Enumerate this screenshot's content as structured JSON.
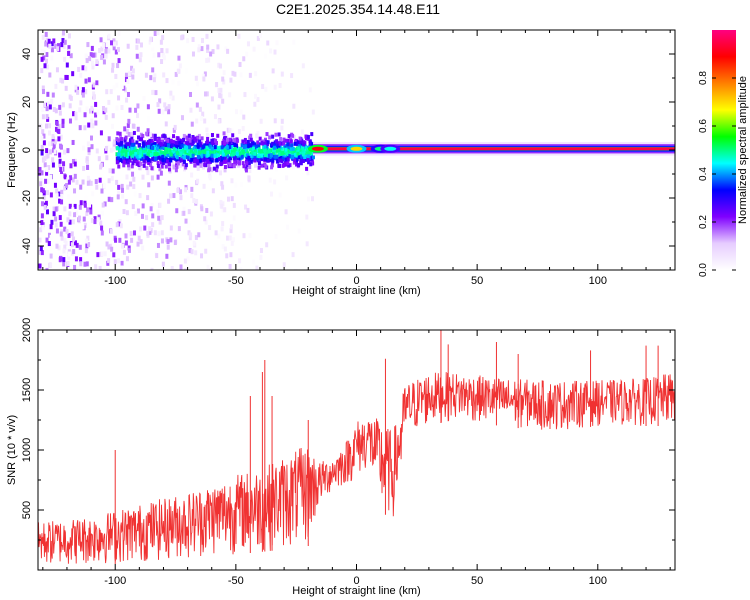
{
  "title": "C2E1.2025.354.14.48.E11",
  "chart_data": [
    {
      "type": "heatmap",
      "title": "",
      "xlabel": "Height of straight line (km)",
      "ylabel": "Frequency (Hz)",
      "xlim": [
        -132,
        132
      ],
      "ylim": [
        -50,
        50
      ],
      "xticks": [
        -100,
        -50,
        0,
        50,
        100
      ],
      "yticks": [
        -40,
        -20,
        0,
        20,
        40
      ],
      "xtick_labels": [
        "-100",
        "-50",
        "0",
        "50",
        "100"
      ],
      "ytick_labels": [
        "-40",
        "-20",
        "0",
        "20",
        "40"
      ],
      "colorbar": {
        "label": "Normalized spectral amplitude",
        "range": [
          0,
          1
        ],
        "ticks": [
          0.0,
          0.2,
          0.4,
          0.6,
          0.8
        ],
        "tick_labels": [
          "0.0",
          "0.2",
          "0.4",
          "0.6",
          "0.8"
        ],
        "colormap": [
          "#ffffff",
          "#e6ccff",
          "#7f00ff",
          "#0000ff",
          "#00ffff",
          "#00ff00",
          "#ffff00",
          "#ff8000",
          "#ff0000",
          "#ff0080"
        ]
      },
      "features": [
        {
          "description": "scatter noise",
          "x_range": [
            -132,
            -18
          ],
          "frequency_range": [
            -50,
            50
          ]
        },
        {
          "description": "dense band",
          "x_range": [
            -100,
            -18
          ],
          "frequency_range": [
            -8,
            8
          ],
          "peak_amplitude": 0.5
        },
        {
          "description": "narrow line",
          "x_range": [
            -18,
            132
          ],
          "frequency": 0.5,
          "peak_amplitude": 0.95
        }
      ]
    },
    {
      "type": "line",
      "title": "",
      "xlabel": "Height of straight line (km)",
      "ylabel": "SNR (10 * v/v)",
      "xlim": [
        -132,
        132
      ],
      "ylim": [
        0,
        2000
      ],
      "xticks": [
        -100,
        -50,
        0,
        50,
        100
      ],
      "yticks": [
        500,
        1000,
        1500,
        2000
      ],
      "xtick_labels": [
        "-100",
        "-50",
        "0",
        "50",
        "100"
      ],
      "ytick_labels": [
        "500",
        "1000",
        "1500",
        "2000"
      ],
      "grid": false,
      "series_color": "#f03232",
      "envelope": {
        "x": [
          -132,
          -110,
          -90,
          -70,
          -50,
          -40,
          -30,
          -20,
          -15,
          -10,
          -5,
          0,
          5,
          10,
          15,
          18,
          20,
          25,
          30,
          40,
          60,
          80,
          100,
          120,
          132
        ],
        "low": [
          30,
          40,
          60,
          90,
          130,
          150,
          170,
          200,
          550,
          650,
          700,
          750,
          850,
          500,
          400,
          700,
          1050,
          1150,
          1200,
          1250,
          1200,
          1150,
          1200,
          1200,
          1200
        ],
        "high": [
          400,
          450,
          550,
          650,
          800,
          850,
          950,
          1050,
          900,
          950,
          1050,
          1250,
          1300,
          1250,
          1150,
          1350,
          1550,
          1600,
          1650,
          1650,
          1600,
          1580,
          1580,
          1600,
          1650
        ]
      },
      "spikes": [
        {
          "x": -38,
          "y": 1750
        },
        {
          "x": -39,
          "y": 1650
        },
        {
          "x": -44,
          "y": 1450
        },
        {
          "x": -35,
          "y": 1450
        },
        {
          "x": -100,
          "y": 1000
        },
        {
          "x": -20,
          "y": 1250
        },
        {
          "x": 12,
          "y": 1760
        },
        {
          "x": 35,
          "y": 2000
        },
        {
          "x": 38,
          "y": 1880
        },
        {
          "x": 58,
          "y": 1900
        },
        {
          "x": 67,
          "y": 1800
        },
        {
          "x": 97,
          "y": 1830
        },
        {
          "x": 120,
          "y": 1870
        },
        {
          "x": 125,
          "y": 1870
        }
      ]
    }
  ]
}
